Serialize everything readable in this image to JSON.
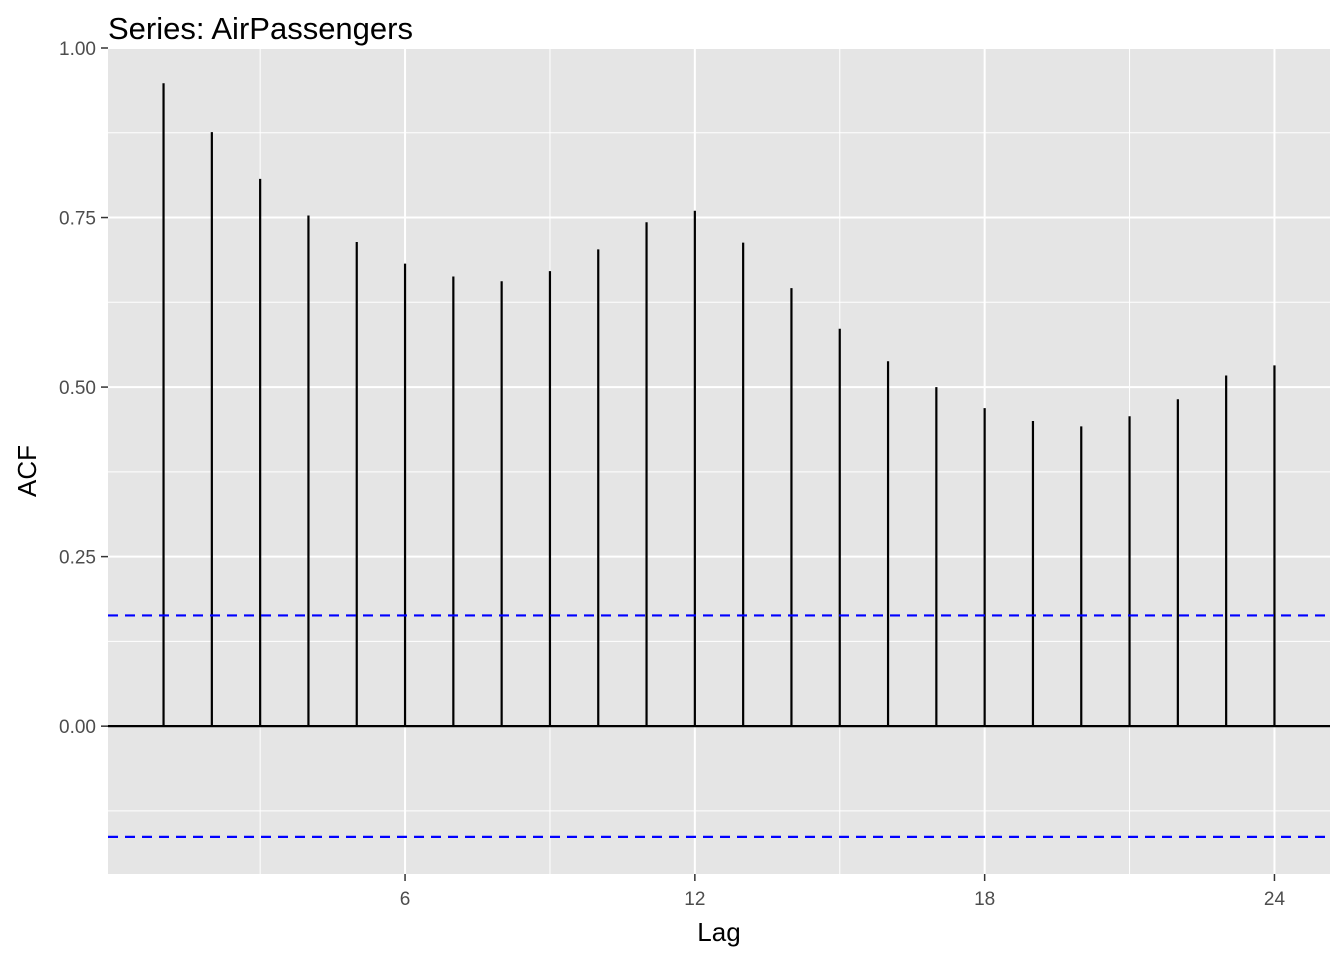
{
  "chart_data": {
    "type": "bar",
    "title": "Series: AirPassengers",
    "xlabel": "Lag",
    "ylabel": "ACF",
    "x": [
      1,
      2,
      3,
      4,
      5,
      6,
      7,
      8,
      9,
      10,
      11,
      12,
      13,
      14,
      15,
      16,
      17,
      18,
      19,
      20,
      21,
      22,
      23,
      24
    ],
    "values": [
      0.948,
      0.876,
      0.807,
      0.753,
      0.714,
      0.682,
      0.663,
      0.656,
      0.671,
      0.703,
      0.743,
      0.76,
      0.713,
      0.646,
      0.586,
      0.538,
      0.5,
      0.469,
      0.45,
      0.442,
      0.457,
      0.482,
      0.517,
      0.532
    ],
    "x_ticks": [
      6,
      12,
      18,
      24
    ],
    "x_tick_labels": [
      "6",
      "12",
      "18",
      "24"
    ],
    "y_ticks": [
      0,
      0.25,
      0.5,
      0.75,
      1
    ],
    "y_tick_labels": [
      "0.00",
      "0.25",
      "0.50",
      "0.75",
      "1.00"
    ],
    "xlim": [
      -0.15,
      25.15
    ],
    "ylim": [
      -0.218,
      1.0
    ],
    "confidence_limits": [
      0.1633,
      -0.1633
    ],
    "grid": true,
    "legend": "none",
    "colors": {
      "panel": "#e5e5e5",
      "grid": "#ffffff",
      "bars": "#000000",
      "confidence": "#0000ff",
      "ticks": "#333333"
    }
  }
}
